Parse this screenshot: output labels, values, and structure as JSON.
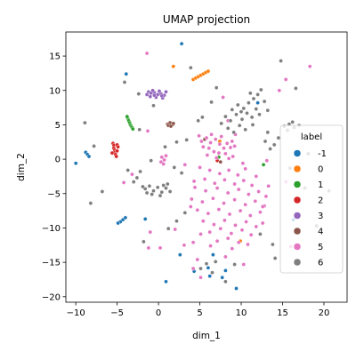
{
  "chart_data": {
    "type": "scatter",
    "title": "UMAP projection",
    "xlabel": "dim_1",
    "ylabel": "dim_2",
    "xlim": [
      -11.2,
      22.8
    ],
    "ylim": [
      -20.8,
      18.5
    ],
    "x_ticks": [
      -10,
      -5,
      0,
      5,
      10,
      15,
      20
    ],
    "y_ticks": [
      -20,
      -15,
      -10,
      -5,
      0,
      5,
      10,
      15
    ],
    "x_tick_labels": [
      "−10",
      "−5",
      "0",
      "5",
      "10",
      "15",
      "20"
    ],
    "y_tick_labels": [
      "−20",
      "−15",
      "−10",
      "−5",
      "0",
      "5",
      "10",
      "15"
    ],
    "grid": false,
    "legend": {
      "title": "label",
      "placement": "right"
    },
    "series": [
      {
        "name": "-1",
        "color": "#1f77b4",
        "points": [
          [
            -10.0,
            -0.6
          ],
          [
            -8.8,
            1.0
          ],
          [
            -8.6,
            0.7
          ],
          [
            -8.4,
            0.4
          ],
          [
            -4.3,
            -8.8
          ],
          [
            -4.6,
            -9.1
          ],
          [
            -4.9,
            -9.3
          ],
          [
            -4.0,
            -8.5
          ],
          [
            -3.9,
            12.4
          ],
          [
            2.8,
            16.8
          ],
          [
            12.0,
            8.2
          ],
          [
            6.0,
            -15.8
          ],
          [
            7.7,
            -17.2
          ],
          [
            4.3,
            -16.3
          ],
          [
            8.1,
            -16.2
          ],
          [
            9.4,
            -18.8
          ],
          [
            -1.6,
            -8.7
          ],
          [
            0.9,
            -17.8
          ],
          [
            2.6,
            -13.9
          ],
          [
            16.3,
            -8.8
          ],
          [
            6.6,
            -13.9
          ],
          [
            6.2,
            -17.0
          ]
        ]
      },
      {
        "name": "0",
        "color": "#ff7f0e",
        "points": [
          [
            4.2,
            11.6
          ],
          [
            4.5,
            11.8
          ],
          [
            4.8,
            12.0
          ],
          [
            5.1,
            12.2
          ],
          [
            5.4,
            12.4
          ],
          [
            5.7,
            12.6
          ],
          [
            6.0,
            12.8
          ],
          [
            1.4,
            5.3
          ],
          [
            9.9,
            -11.9
          ],
          [
            7.4,
            2.6
          ],
          [
            1.8,
            13.5
          ]
        ]
      },
      {
        "name": "1",
        "color": "#2ca02c",
        "points": [
          [
            -3.7,
            5.9
          ],
          [
            -3.6,
            5.6
          ],
          [
            -3.5,
            5.3
          ],
          [
            -3.4,
            5.0
          ],
          [
            -3.3,
            4.8
          ],
          [
            -3.2,
            4.6
          ],
          [
            -3.1,
            4.4
          ],
          [
            -3.8,
            6.2
          ],
          [
            7.3,
            0.3
          ],
          [
            12.7,
            -0.8
          ]
        ]
      },
      {
        "name": "2",
        "color": "#d62728",
        "points": [
          [
            -5.5,
            2.3
          ],
          [
            -5.4,
            2.0
          ],
          [
            -5.4,
            1.6
          ],
          [
            -5.3,
            1.3
          ],
          [
            -5.3,
            1.0
          ],
          [
            -5.2,
            0.7
          ],
          [
            -5.1,
            0.4
          ],
          [
            -5.0,
            2.1
          ],
          [
            -5.0,
            1.2
          ],
          [
            -4.9,
            1.8
          ],
          [
            -5.6,
            0.9
          ],
          [
            7.1,
            -0.2
          ]
        ]
      },
      {
        "name": "3",
        "color": "#9467bd",
        "points": [
          [
            -1.2,
            9.8
          ],
          [
            -0.9,
            9.6
          ],
          [
            -0.5,
            9.7
          ],
          [
            -0.1,
            9.4
          ],
          [
            0.3,
            9.5
          ],
          [
            0.7,
            9.3
          ],
          [
            -1.0,
            9.1
          ],
          [
            -0.3,
            9.0
          ],
          [
            0.5,
            8.9
          ],
          [
            0.1,
            9.9
          ],
          [
            -0.7,
            10.0
          ],
          [
            0.9,
            9.8
          ],
          [
            -1.4,
            9.4
          ],
          [
            0.4,
            9.2
          ],
          [
            -0.5,
            9.3
          ]
        ]
      },
      {
        "name": "4",
        "color": "#8c564b",
        "points": [
          [
            1.1,
            5.1
          ],
          [
            1.4,
            5.3
          ],
          [
            1.7,
            5.0
          ],
          [
            1.2,
            4.9
          ],
          [
            1.5,
            4.8
          ],
          [
            1.8,
            5.2
          ],
          [
            5.6,
            2.9
          ],
          [
            7.5,
            -0.4
          ]
        ]
      },
      {
        "name": "5",
        "color": "#e377c2",
        "points": [
          [
            5.2,
            2.6
          ],
          [
            5.8,
            3.1
          ],
          [
            6.3,
            2.4
          ],
          [
            6.9,
            2.9
          ],
          [
            7.4,
            2.2
          ],
          [
            7.9,
            1.6
          ],
          [
            8.3,
            2.3
          ],
          [
            8.7,
            1.7
          ],
          [
            6.1,
            1.6
          ],
          [
            6.7,
            1.1
          ],
          [
            7.3,
            0.9
          ],
          [
            5.4,
            1.8
          ],
          [
            5.9,
            0.6
          ],
          [
            8.1,
            0.8
          ],
          [
            7.6,
            3.3
          ],
          [
            6.4,
            3.6
          ],
          [
            8.9,
            2.6
          ],
          [
            9.2,
            1.9
          ],
          [
            4.9,
            3.4
          ],
          [
            7.0,
            0.2
          ],
          [
            8.5,
            0.1
          ],
          [
            9.0,
            0.4
          ],
          [
            5.0,
            -1.2
          ],
          [
            6.2,
            -1.6
          ],
          [
            7.4,
            -2.1
          ],
          [
            8.5,
            -1.6
          ],
          [
            9.6,
            -2.3
          ],
          [
            10.5,
            -1.4
          ],
          [
            5.6,
            -2.9
          ],
          [
            6.8,
            -3.5
          ],
          [
            8.0,
            -3.0
          ],
          [
            9.2,
            -3.6
          ],
          [
            10.3,
            -3.1
          ],
          [
            11.3,
            -3.8
          ],
          [
            4.4,
            -4.1
          ],
          [
            5.7,
            -4.6
          ],
          [
            7.1,
            -4.2
          ],
          [
            8.4,
            -4.9
          ],
          [
            9.7,
            -4.4
          ],
          [
            10.9,
            -5.1
          ],
          [
            12.1,
            -4.7
          ],
          [
            13.0,
            -5.4
          ],
          [
            4.0,
            -5.8
          ],
          [
            5.3,
            -6.2
          ],
          [
            6.6,
            -5.7
          ],
          [
            7.9,
            -6.4
          ],
          [
            9.2,
            -5.9
          ],
          [
            10.5,
            -6.6
          ],
          [
            11.7,
            -6.1
          ],
          [
            12.8,
            -6.8
          ],
          [
            4.7,
            -7.4
          ],
          [
            6.0,
            -7.9
          ],
          [
            7.3,
            -7.3
          ],
          [
            8.6,
            -8.0
          ],
          [
            9.9,
            -7.5
          ],
          [
            11.1,
            -8.2
          ],
          [
            12.3,
            -7.7
          ],
          [
            5.4,
            -9.0
          ],
          [
            6.7,
            -9.5
          ],
          [
            8.0,
            -8.9
          ],
          [
            9.3,
            -9.6
          ],
          [
            10.6,
            -9.1
          ],
          [
            11.8,
            -9.8
          ],
          [
            6.2,
            -10.6
          ],
          [
            7.5,
            -10.1
          ],
          [
            8.8,
            -10.8
          ],
          [
            10.1,
            -10.3
          ],
          [
            11.2,
            -11.0
          ],
          [
            7.1,
            -11.9
          ],
          [
            8.4,
            -11.5
          ],
          [
            9.7,
            -12.1
          ],
          [
            4.3,
            -3.2
          ],
          [
            3.9,
            -6.9
          ],
          [
            13.3,
            -3.9
          ],
          [
            12.6,
            -9.3
          ],
          [
            5.1,
            -10.9
          ],
          [
            10.2,
            -0.6
          ],
          [
            11.8,
            -2.5
          ],
          [
            6.3,
            -12.6
          ],
          [
            8.9,
            -13.0
          ],
          [
            10.8,
            -12.4
          ],
          [
            0.4,
            0.3
          ],
          [
            0.7,
            -0.1
          ],
          [
            0.3,
            -0.4
          ],
          [
            0.9,
            0.5
          ],
          [
            0.6,
            -0.7
          ],
          [
            -1.2,
            -12.9
          ],
          [
            4.7,
            -14.6
          ],
          [
            4.2,
            -12.1
          ],
          [
            9.3,
            3.6
          ],
          [
            13.1,
            -0.2
          ],
          [
            15.4,
            -3.3
          ],
          [
            18.3,
            13.5
          ],
          [
            15.4,
            11.6
          ],
          [
            0.2,
            -12.9
          ],
          [
            -1.0,
            -10.6
          ],
          [
            -1.3,
            4.1
          ],
          [
            -4.2,
            -3.4
          ],
          [
            4.2,
            -15.9
          ],
          [
            5.1,
            -17.2
          ],
          [
            3.1,
            -12.5
          ],
          [
            16.0,
            -12.7
          ],
          [
            3.2,
            -0.8
          ],
          [
            8.1,
            -14.2
          ],
          [
            10.3,
            -15.3
          ],
          [
            -3.2,
            -2.2
          ],
          [
            8.4,
            5.6
          ],
          [
            14.6,
            10.0
          ],
          [
            -1.4,
            15.4
          ],
          [
            12.6,
            -6.9
          ],
          [
            2.0,
            -10.2
          ],
          [
            7.8,
            9.0
          ]
        ]
      },
      {
        "name": "6",
        "color": "#7f7f7f",
        "points": [
          [
            8.1,
            6.2
          ],
          [
            8.7,
            5.6
          ],
          [
            9.4,
            6.5
          ],
          [
            10.1,
            5.8
          ],
          [
            10.7,
            6.7
          ],
          [
            11.3,
            6.1
          ],
          [
            11.8,
            7.3
          ],
          [
            12.2,
            6.5
          ],
          [
            8.9,
            7.2
          ],
          [
            9.6,
            7.9
          ],
          [
            10.3,
            7.4
          ],
          [
            10.9,
            8.2
          ],
          [
            11.5,
            8.8
          ],
          [
            12.0,
            9.4
          ],
          [
            12.4,
            10.1
          ],
          [
            11.1,
            9.6
          ],
          [
            9.8,
            4.9
          ],
          [
            10.5,
            4.3
          ],
          [
            11.4,
            5.0
          ],
          [
            8.4,
            4.5
          ],
          [
            9.1,
            3.9
          ],
          [
            12.8,
            8.4
          ],
          [
            13.2,
            7.1
          ],
          [
            7.6,
            5.2
          ],
          [
            10.0,
            6.9
          ],
          [
            -1.6,
            -4.3
          ],
          [
            -1.1,
            -3.9
          ],
          [
            -0.6,
            -4.6
          ],
          [
            -0.1,
            -4.1
          ],
          [
            0.4,
            -4.8
          ],
          [
            0.9,
            -4.2
          ],
          [
            1.4,
            -4.7
          ],
          [
            -0.8,
            -5.1
          ],
          [
            0.2,
            -5.3
          ],
          [
            1.1,
            -3.6
          ],
          [
            -1.4,
            -4.9
          ],
          [
            0.6,
            -3.8
          ],
          [
            -1.9,
            -4.0
          ],
          [
            15.2,
            4.8
          ],
          [
            15.8,
            5.1
          ],
          [
            16.4,
            4.6
          ],
          [
            15.6,
            4.2
          ],
          [
            16.2,
            5.4
          ],
          [
            17.0,
            4.9
          ],
          [
            14.5,
            3.1
          ],
          [
            14.0,
            2.1
          ],
          [
            13.5,
            1.5
          ],
          [
            12.9,
            2.6
          ],
          [
            4.8,
            5.6
          ],
          [
            5.3,
            6.1
          ],
          [
            -2.6,
            -2.7
          ],
          [
            -3.0,
            -3.3
          ],
          [
            -2.2,
            -1.8
          ],
          [
            1.9,
            -1.2
          ],
          [
            2.8,
            -2.0
          ],
          [
            -7.8,
            1.9
          ],
          [
            -8.9,
            5.3
          ],
          [
            -3.7,
            -1.6
          ],
          [
            18.1,
            0.8
          ],
          [
            15.9,
            -1.3
          ],
          [
            17.7,
            -4.2
          ],
          [
            12.3,
            -10.9
          ],
          [
            13.8,
            -12.4
          ],
          [
            6.9,
            -14.9
          ],
          [
            6.5,
            -16.5
          ],
          [
            5.8,
            -15.2
          ],
          [
            2.2,
            -9.0
          ],
          [
            1.2,
            -10.1
          ],
          [
            -4.1,
            11.2
          ],
          [
            -2.4,
            9.5
          ],
          [
            -8.2,
            -6.4
          ],
          [
            -2.3,
            4.3
          ],
          [
            -0.6,
            7.8
          ],
          [
            6.4,
            8.3
          ],
          [
            7.0,
            10.4
          ],
          [
            3.9,
            13.3
          ],
          [
            14.8,
            14.3
          ],
          [
            16.6,
            10.3
          ],
          [
            19.1,
            -9.7
          ],
          [
            20.6,
            -4.6
          ],
          [
            0.8,
            1.8
          ],
          [
            3.4,
            2.8
          ],
          [
            -0.9,
            -0.2
          ],
          [
            -6.8,
            -4.7
          ],
          [
            14.1,
            -14.4
          ],
          [
            9.2,
            -15.3
          ],
          [
            3.2,
            -7.8
          ],
          [
            8.1,
            -17.8
          ],
          [
            5.1,
            -15.9
          ],
          [
            -1.8,
            -12.0
          ],
          [
            13.2,
            3.9
          ],
          [
            2.2,
            2.5
          ]
        ]
      }
    ]
  }
}
